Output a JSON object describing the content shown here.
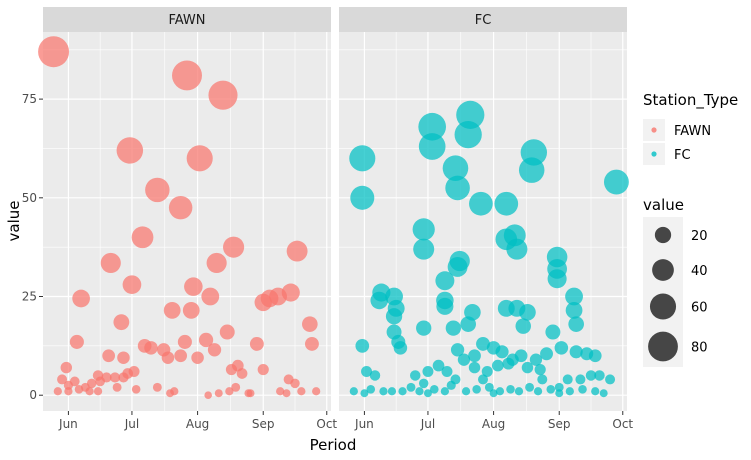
{
  "chart_data": {
    "type": "scatter",
    "xlabel": "Period",
    "ylabel": "value",
    "x_ticks": [
      {
        "value": "2019-06-01",
        "label": "Jun"
      },
      {
        "value": "2019-07-01",
        "label": "Jul"
      },
      {
        "value": "2019-08-01",
        "label": "Aug"
      },
      {
        "value": "2019-09-01",
        "label": "Sep"
      },
      {
        "value": "2019-10-01",
        "label": "Oct"
      }
    ],
    "xlim": [
      "2019-05-20",
      "2019-10-03"
    ],
    "y_ticks": [
      0,
      25,
      50,
      75
    ],
    "ylim": [
      -4,
      92
    ],
    "facet_variable": "Station_Type",
    "size_legend": {
      "title": "value",
      "breaks": [
        20,
        40,
        60,
        80
      ]
    },
    "color_legend": {
      "title": "Station_Type",
      "entries": [
        {
          "name": "FAWN",
          "color": "#F8766D"
        },
        {
          "name": "FC",
          "color": "#00BFC4"
        }
      ]
    },
    "panels": [
      {
        "name": "FAWN",
        "color": "#F8766D",
        "points": [
          [
            "2019-05-25",
            87
          ],
          [
            "2019-06-30",
            62
          ],
          [
            "2019-07-27",
            81
          ],
          [
            "2019-08-13",
            76
          ],
          [
            "2019-08-02",
            60
          ],
          [
            "2019-07-13",
            52
          ],
          [
            "2019-07-24",
            47.5
          ],
          [
            "2019-07-06",
            40
          ],
          [
            "2019-08-18",
            37.5
          ],
          [
            "2019-09-17",
            36.5
          ],
          [
            "2019-06-21",
            33.5
          ],
          [
            "2019-08-10",
            33.5
          ],
          [
            "2019-07-30",
            27.5
          ],
          [
            "2019-07-01",
            28
          ],
          [
            "2019-06-07",
            24.5
          ],
          [
            "2019-08-07",
            25
          ],
          [
            "2019-09-04",
            24.5
          ],
          [
            "2019-09-01",
            23.5
          ],
          [
            "2019-09-08",
            25
          ],
          [
            "2019-09-14",
            26
          ],
          [
            "2019-07-20",
            21.5
          ],
          [
            "2019-07-29",
            21.5
          ],
          [
            "2019-06-26",
            18.5
          ],
          [
            "2019-09-23",
            18
          ],
          [
            "2019-08-15",
            16
          ],
          [
            "2019-06-05",
            13.5
          ],
          [
            "2019-07-16",
            11.5
          ],
          [
            "2019-07-07",
            12.5
          ],
          [
            "2019-07-18",
            9.5
          ],
          [
            "2019-07-26",
            13.5
          ],
          [
            "2019-08-01",
            9.5
          ],
          [
            "2019-08-05",
            14
          ],
          [
            "2019-08-09",
            11.5
          ],
          [
            "2019-06-20",
            10
          ],
          [
            "2019-06-27",
            9.5
          ],
          [
            "2019-08-29",
            13
          ],
          [
            "2019-09-24",
            13
          ],
          [
            "2019-07-24",
            10
          ],
          [
            "2019-07-10",
            12
          ],
          [
            "2019-08-20",
            7.5
          ],
          [
            "2019-05-31",
            7
          ],
          [
            "2019-06-15",
            5
          ],
          [
            "2019-06-19",
            4.5
          ],
          [
            "2019-06-23",
            4.5
          ],
          [
            "2019-06-27",
            4.5
          ],
          [
            "2019-06-29",
            5.5
          ],
          [
            "2019-07-02",
            6
          ],
          [
            "2019-08-17",
            6.5
          ],
          [
            "2019-08-22",
            5.5
          ],
          [
            "2019-09-01",
            6.5
          ],
          [
            "2019-09-13",
            4
          ],
          [
            "2019-09-16",
            3
          ],
          [
            "2019-05-29",
            4
          ],
          [
            "2019-06-01",
            2.5
          ],
          [
            "2019-06-04",
            3.5
          ],
          [
            "2019-06-09",
            2
          ],
          [
            "2019-06-12",
            3
          ],
          [
            "2019-06-16",
            3.5
          ],
          [
            "2019-05-27",
            1
          ],
          [
            "2019-06-01",
            1
          ],
          [
            "2019-06-06",
            1.5
          ],
          [
            "2019-06-11",
            1
          ],
          [
            "2019-06-15",
            1
          ],
          [
            "2019-06-24",
            2
          ],
          [
            "2019-07-03",
            1.5
          ],
          [
            "2019-07-13",
            2
          ],
          [
            "2019-07-21",
            1
          ],
          [
            "2019-08-06",
            0
          ],
          [
            "2019-08-11",
            0.5
          ],
          [
            "2019-08-16",
            1
          ],
          [
            "2019-08-19",
            2
          ],
          [
            "2019-08-25",
            0.5
          ],
          [
            "2019-09-09",
            1
          ],
          [
            "2019-09-19",
            1
          ],
          [
            "2019-09-26",
            1
          ],
          [
            "2019-07-19",
            0.5
          ],
          [
            "2019-08-26",
            0.5
          ],
          [
            "2019-09-12",
            0.5
          ]
        ]
      },
      {
        "name": "FC",
        "color": "#00BFC4",
        "points": [
          [
            "2019-05-31",
            60
          ],
          [
            "2019-05-31",
            50
          ],
          [
            "2019-07-03",
            68
          ],
          [
            "2019-07-21",
            71
          ],
          [
            "2019-07-20",
            66
          ],
          [
            "2019-07-03",
            63
          ],
          [
            "2019-07-14",
            57.5
          ],
          [
            "2019-08-20",
            61.5
          ],
          [
            "2019-08-19",
            57
          ],
          [
            "2019-07-15",
            52.5
          ],
          [
            "2019-09-28",
            54
          ],
          [
            "2019-07-26",
            48.5
          ],
          [
            "2019-08-07",
            48.5
          ],
          [
            "2019-06-29",
            42
          ],
          [
            "2019-06-29",
            37
          ],
          [
            "2019-08-07",
            39.5
          ],
          [
            "2019-08-11",
            40.5
          ],
          [
            "2019-08-12",
            37
          ],
          [
            "2019-08-31",
            35
          ],
          [
            "2019-08-31",
            32
          ],
          [
            "2019-08-31",
            29.5
          ],
          [
            "2019-07-09",
            29
          ],
          [
            "2019-07-16",
            34
          ],
          [
            "2019-07-15",
            32.5
          ],
          [
            "2019-07-09",
            24
          ],
          [
            "2019-07-09",
            22.5
          ],
          [
            "2019-06-09",
            26
          ],
          [
            "2019-06-08",
            24
          ],
          [
            "2019-06-15",
            25
          ],
          [
            "2019-06-16",
            22
          ],
          [
            "2019-06-15",
            20
          ],
          [
            "2019-09-08",
            25
          ],
          [
            "2019-09-08",
            21.5
          ],
          [
            "2019-09-09",
            18
          ],
          [
            "2019-08-07",
            22
          ],
          [
            "2019-08-12",
            22
          ],
          [
            "2019-08-17",
            21
          ],
          [
            "2019-08-15",
            17.5
          ],
          [
            "2019-07-22",
            21
          ],
          [
            "2019-07-20",
            18
          ],
          [
            "2019-07-13",
            17
          ],
          [
            "2019-06-15",
            16
          ],
          [
            "2019-06-17",
            13.5
          ],
          [
            "2019-06-18",
            12
          ],
          [
            "2019-06-29",
            17
          ],
          [
            "2019-05-31",
            12.5
          ],
          [
            "2019-08-29",
            16
          ],
          [
            "2019-09-02",
            12
          ],
          [
            "2019-09-09",
            11
          ],
          [
            "2019-09-14",
            10.5
          ],
          [
            "2019-09-18",
            10
          ],
          [
            "2019-07-15",
            11.5
          ],
          [
            "2019-07-23",
            10
          ],
          [
            "2019-07-27",
            13
          ],
          [
            "2019-08-01",
            12
          ],
          [
            "2019-08-05",
            11
          ],
          [
            "2019-08-10",
            9
          ],
          [
            "2019-08-14",
            10
          ],
          [
            "2019-08-21",
            9
          ],
          [
            "2019-08-26",
            10.5
          ],
          [
            "2019-07-01",
            6
          ],
          [
            "2019-07-06",
            7.5
          ],
          [
            "2019-07-10",
            6
          ],
          [
            "2019-07-18",
            9
          ],
          [
            "2019-07-23",
            7
          ],
          [
            "2019-07-29",
            6
          ],
          [
            "2019-08-03",
            7.5
          ],
          [
            "2019-08-08",
            8
          ],
          [
            "2019-08-17",
            7
          ],
          [
            "2019-08-23",
            6.5
          ],
          [
            "2019-06-02",
            6
          ],
          [
            "2019-06-06",
            5
          ],
          [
            "2019-06-25",
            5
          ],
          [
            "2019-06-29",
            3
          ],
          [
            "2019-07-14",
            4
          ],
          [
            "2019-07-27",
            4
          ],
          [
            "2019-08-24",
            4
          ],
          [
            "2019-09-05",
            4
          ],
          [
            "2019-09-11",
            4
          ],
          [
            "2019-09-16",
            5
          ],
          [
            "2019-09-20",
            5
          ],
          [
            "2019-09-25",
            4
          ],
          [
            "2019-05-27",
            1
          ],
          [
            "2019-06-04",
            1.5
          ],
          [
            "2019-06-10",
            1
          ],
          [
            "2019-06-14",
            1
          ],
          [
            "2019-06-19",
            1
          ],
          [
            "2019-06-23",
            2
          ],
          [
            "2019-06-27",
            1
          ],
          [
            "2019-07-04",
            1.5
          ],
          [
            "2019-07-09",
            1
          ],
          [
            "2019-07-12",
            2.5
          ],
          [
            "2019-07-19",
            1
          ],
          [
            "2019-07-24",
            1.5
          ],
          [
            "2019-07-30",
            2
          ],
          [
            "2019-08-04",
            1
          ],
          [
            "2019-08-09",
            1.5
          ],
          [
            "2019-08-13",
            1
          ],
          [
            "2019-08-18",
            2
          ],
          [
            "2019-08-22",
            1
          ],
          [
            "2019-08-28",
            1.5
          ],
          [
            "2019-09-01",
            2
          ],
          [
            "2019-09-06",
            1
          ],
          [
            "2019-09-12",
            1.5
          ],
          [
            "2019-09-18",
            1
          ],
          [
            "2019-06-01",
            0.5
          ],
          [
            "2019-07-01",
            0.5
          ],
          [
            "2019-08-01",
            0.5
          ],
          [
            "2019-09-01",
            0.5
          ],
          [
            "2019-09-22",
            0.5
          ]
        ]
      }
    ]
  }
}
